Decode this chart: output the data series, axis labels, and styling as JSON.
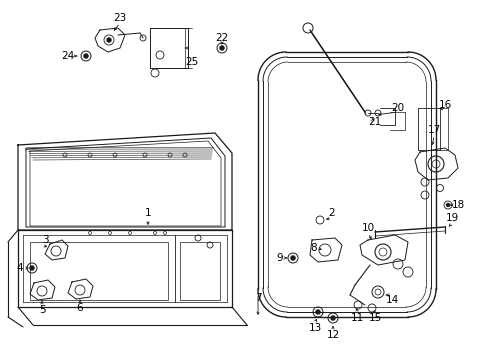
{
  "bg_color": "#ffffff",
  "fig_width": 4.89,
  "fig_height": 3.6,
  "dpi": 100,
  "line_color": "#1a1a1a",
  "text_color": "#000000",
  "label_fontsize": 7.5
}
